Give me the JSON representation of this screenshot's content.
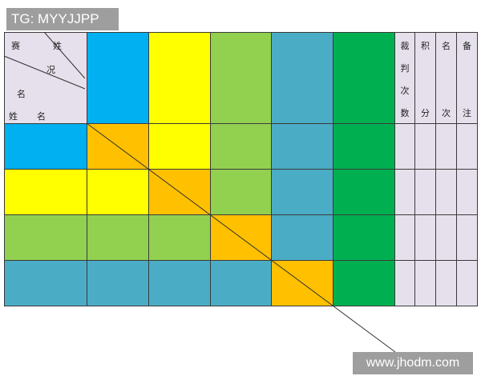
{
  "watermark_top": "TG: MYYJJPP",
  "watermark_bottom": "www.jhodm.com",
  "corner": {
    "sai": "赛",
    "xing_top": "姓",
    "kuang": "况",
    "ming_mid": "名",
    "xing": "姓",
    "ming": "名"
  },
  "side_headers": [
    {
      "chars": [
        "裁",
        "判",
        "次",
        "数"
      ]
    },
    {
      "chars": [
        "积",
        "",
        "",
        "分"
      ]
    },
    {
      "chars": [
        "名",
        "",
        "",
        "次"
      ]
    },
    {
      "chars": [
        "备",
        "",
        "",
        "注"
      ]
    }
  ],
  "colors": {
    "blue": "#00b0f0",
    "yellow": "#ffff00",
    "green": "#92d050",
    "teal": "#4bacc6",
    "dark_green": "#00b050",
    "orange": "#ffc000",
    "lavender": "#e6e0ec"
  },
  "header_colors": [
    "blue",
    "yellow",
    "green",
    "teal",
    "dark_green"
  ],
  "rows": [
    [
      "blue",
      "orange",
      "yellow",
      "green",
      "teal",
      "dark_green"
    ],
    [
      "yellow",
      "yellow",
      "orange",
      "green",
      "teal",
      "dark_green"
    ],
    [
      "green",
      "green",
      "green",
      "orange",
      "teal",
      "dark_green"
    ],
    [
      "teal",
      "teal",
      "teal",
      "teal",
      "orange",
      "dark_green"
    ]
  ]
}
